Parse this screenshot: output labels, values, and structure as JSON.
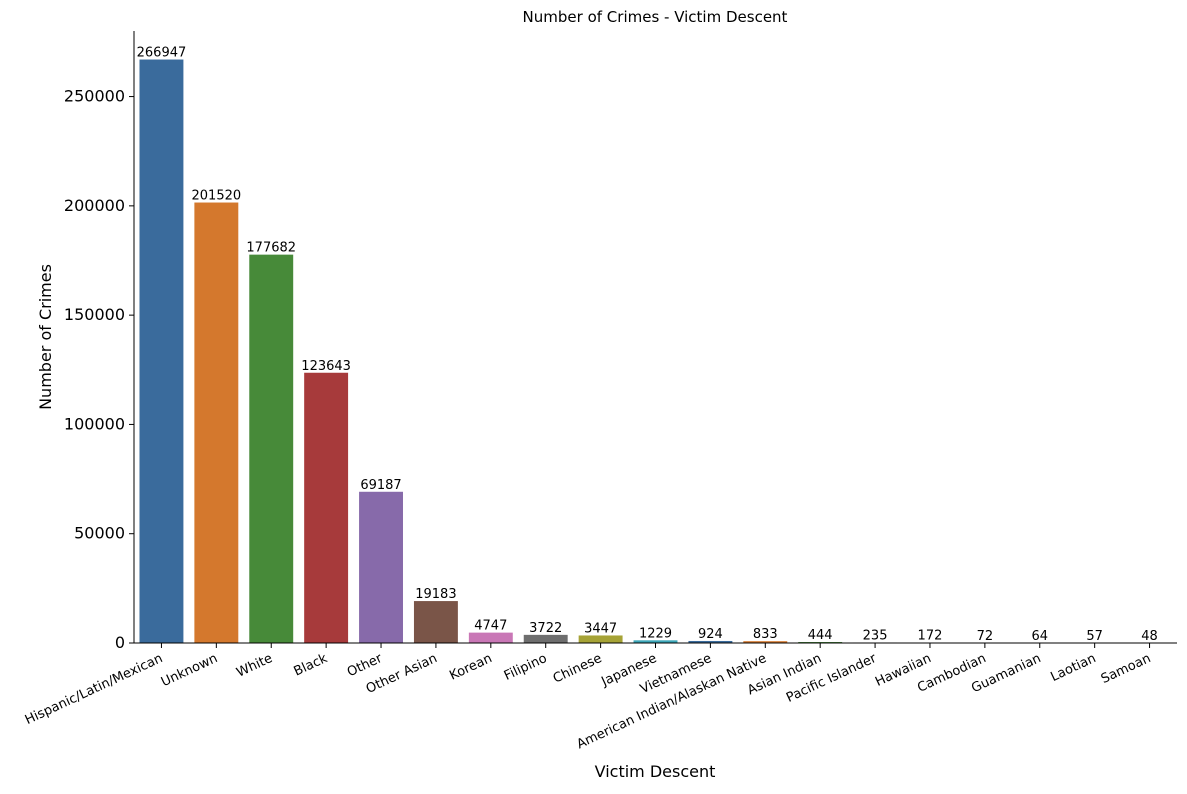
{
  "chart_data": {
    "type": "bar",
    "title": "Number of Crimes - Victim Descent",
    "xlabel": "Victim Descent",
    "ylabel": "Number of Crimes",
    "ylim": [
      0,
      280000
    ],
    "yticks": [
      0,
      50000,
      100000,
      150000,
      200000,
      250000
    ],
    "ytick_labels": [
      "0",
      "50000",
      "100000",
      "150000",
      "200000",
      "250000"
    ],
    "grid": false,
    "categories": [
      "Hispanic/Latin/Mexican",
      "Unknown",
      "White",
      "Black",
      "Other",
      "Other Asian",
      "Korean",
      "Filipino",
      "Chinese",
      "Japanese",
      "Vietnamese",
      "American Indian/Alaskan Native",
      "Asian Indian",
      "Pacific Islander",
      "Hawaiian",
      "Cambodian",
      "Guamanian",
      "Laotian",
      "Samoan"
    ],
    "values": [
      266947,
      201520,
      177682,
      123643,
      69187,
      19183,
      4747,
      3722,
      3447,
      1229,
      924,
      833,
      444,
      235,
      172,
      72,
      64,
      57,
      48
    ],
    "value_labels": [
      "266947",
      "201520",
      "177682",
      "123643",
      "69187",
      "19183",
      "4747",
      "3722",
      "3447",
      "1229",
      "924",
      "833",
      "444",
      "235",
      "172",
      "72",
      "64",
      "57",
      "48"
    ],
    "colors": [
      "#3a6b9c",
      "#d4782d",
      "#478a39",
      "#a73a3b",
      "#876aaa",
      "#7a5548",
      "#c977b6",
      "#6e6e6e",
      "#a6a336",
      "#3da7b9",
      "#3a6b9c",
      "#d4782d",
      "#478a39",
      "#a73a3b",
      "#876aaa",
      "#7a5548",
      "#c977b6",
      "#6e6e6e",
      "#a6a336"
    ]
  }
}
